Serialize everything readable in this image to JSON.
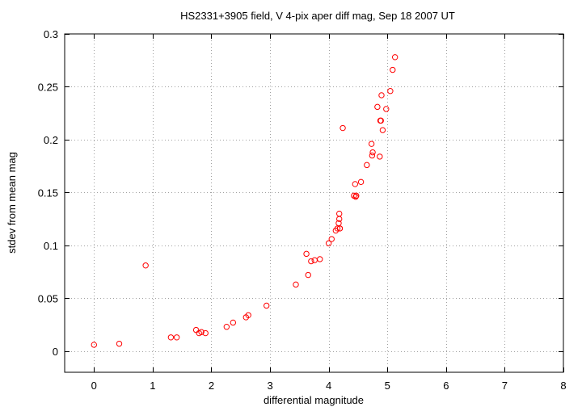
{
  "chart_data": {
    "type": "scatter",
    "title": "HS2331+3905 field, V 4-pix aper diff mag, Sep 18 2007 UT",
    "xlabel": "differential magnitude",
    "ylabel": "stdev from mean mag",
    "xlim": [
      -0.5,
      8
    ],
    "ylim": [
      -0.02,
      0.3
    ],
    "xticks": [
      0,
      1,
      2,
      3,
      4,
      5,
      6,
      7,
      8
    ],
    "xtick_labels": [
      "0",
      "1",
      "2",
      "3",
      "4",
      "5",
      "6",
      "7",
      "8"
    ],
    "yticks": [
      0,
      0.05,
      0.1,
      0.15,
      0.2,
      0.25,
      0.3
    ],
    "ytick_labels": [
      "0",
      "0.05",
      "0.1",
      "0.15",
      "0.2",
      "0.25",
      "0.3"
    ],
    "grid": true,
    "marker": "open-circle",
    "color": "#ff0000",
    "series": [
      {
        "x": [
          0.0,
          0.43,
          0.88,
          1.31,
          1.41,
          1.74,
          1.79,
          1.83,
          1.9,
          2.26,
          2.37,
          2.59,
          2.63,
          2.94,
          3.44,
          3.62,
          3.65,
          3.7,
          3.76,
          3.85,
          4.0,
          4.05,
          4.12,
          4.15,
          4.17,
          4.18,
          4.18,
          4.19,
          4.19,
          4.24,
          4.43,
          4.45,
          4.46,
          4.47,
          4.55,
          4.65,
          4.73,
          4.74,
          4.75,
          4.83,
          4.87,
          4.88,
          4.89,
          4.9,
          4.92,
          4.98,
          5.05,
          5.09,
          5.13
        ],
        "y": [
          0.006,
          0.007,
          0.081,
          0.013,
          0.013,
          0.02,
          0.017,
          0.018,
          0.017,
          0.023,
          0.027,
          0.032,
          0.034,
          0.043,
          0.063,
          0.092,
          0.072,
          0.085,
          0.086,
          0.087,
          0.102,
          0.106,
          0.114,
          0.116,
          0.121,
          0.125,
          0.13,
          0.116,
          0.116,
          0.211,
          0.147,
          0.158,
          0.146,
          0.147,
          0.16,
          0.176,
          0.196,
          0.185,
          0.188,
          0.231,
          0.184,
          0.218,
          0.218,
          0.242,
          0.209,
          0.229,
          0.246,
          0.266,
          0.278
        ]
      }
    ]
  }
}
